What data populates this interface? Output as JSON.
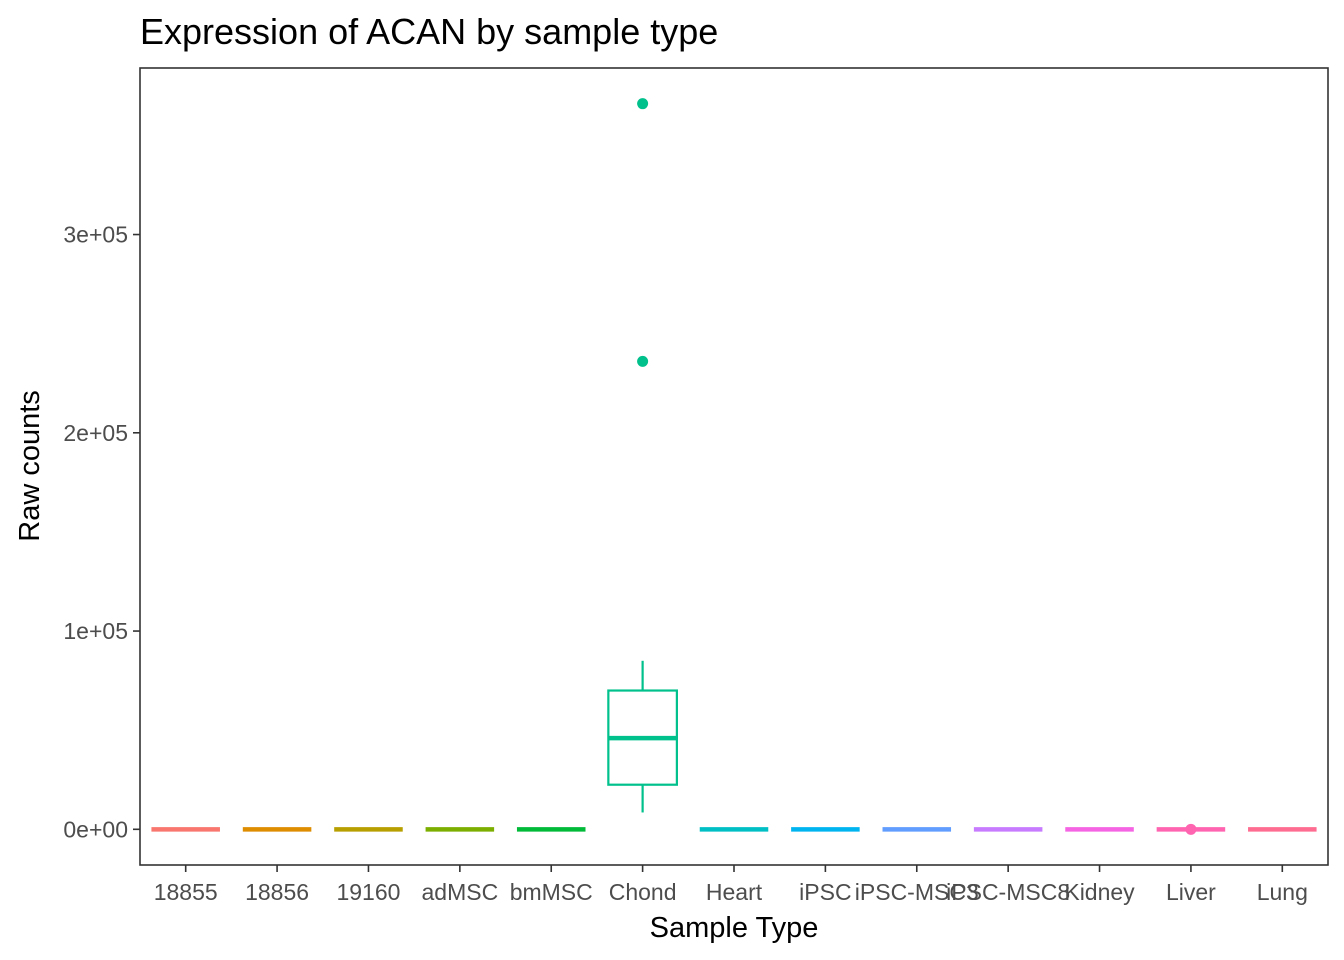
{
  "chart_data": {
    "type": "box",
    "title": "Expression of ACAN by sample type",
    "xlabel": "Sample Type",
    "ylabel": "Raw counts",
    "ylim": [
      -18000,
      384000
    ],
    "y_ticks": [
      0,
      100000,
      200000,
      300000
    ],
    "y_tick_labels": [
      "0e+00",
      "1e+05",
      "2e+05",
      "3e+05"
    ],
    "grid": false,
    "legend": "none",
    "categories": [
      "18855",
      "18856",
      "19160",
      "adMSC",
      "bmMSC",
      "Chond",
      "Heart",
      "iPSC",
      "iPSC-MSC3",
      "iPSC-MSC8",
      "Kidney",
      "Liver",
      "Lung"
    ],
    "boxes": [
      {
        "category": "18855",
        "color": "#F8766D",
        "whisker_low": 0,
        "q1": 0,
        "median": 0,
        "q3": 0,
        "whisker_high": 0,
        "outliers": []
      },
      {
        "category": "18856",
        "color": "#DE8C00",
        "whisker_low": 0,
        "q1": 0,
        "median": 0,
        "q3": 0,
        "whisker_high": 0,
        "outliers": []
      },
      {
        "category": "19160",
        "color": "#B79F00",
        "whisker_low": 0,
        "q1": 0,
        "median": 0,
        "q3": 0,
        "whisker_high": 0,
        "outliers": []
      },
      {
        "category": "adMSC",
        "color": "#7CAE00",
        "whisker_low": 0,
        "q1": 0,
        "median": 0,
        "q3": 0,
        "whisker_high": 0,
        "outliers": []
      },
      {
        "category": "bmMSC",
        "color": "#00BA38",
        "whisker_low": 0,
        "q1": 0,
        "median": 0,
        "q3": 0,
        "whisker_high": 0,
        "outliers": []
      },
      {
        "category": "Chond",
        "color": "#00C08B",
        "whisker_low": 8500,
        "q1": 22500,
        "median": 46000,
        "q3": 70000,
        "whisker_high": 85000,
        "outliers": [
          236000,
          366000
        ]
      },
      {
        "category": "Heart",
        "color": "#00BFC4",
        "whisker_low": 0,
        "q1": 0,
        "median": 0,
        "q3": 0,
        "whisker_high": 0,
        "outliers": []
      },
      {
        "category": "iPSC",
        "color": "#00B4F0",
        "whisker_low": 0,
        "q1": 0,
        "median": 0,
        "q3": 0,
        "whisker_high": 0,
        "outliers": []
      },
      {
        "category": "iPSC-MSC3",
        "color": "#619CFF",
        "whisker_low": 0,
        "q1": 0,
        "median": 0,
        "q3": 0,
        "whisker_high": 0,
        "outliers": []
      },
      {
        "category": "iPSC-MSC8",
        "color": "#C77CFF",
        "whisker_low": 0,
        "q1": 0,
        "median": 0,
        "q3": 0,
        "whisker_high": 0,
        "outliers": []
      },
      {
        "category": "Kidney",
        "color": "#F564E3",
        "whisker_low": 0,
        "q1": 0,
        "median": 0,
        "q3": 0,
        "whisker_high": 0,
        "outliers": []
      },
      {
        "category": "Liver",
        "color": "#FF64B0",
        "whisker_low": 0,
        "q1": 0,
        "median": 0,
        "q3": 0,
        "whisker_high": 0,
        "outliers": [
          0
        ]
      },
      {
        "category": "Lung",
        "color": "#FF6C91",
        "whisker_low": 0,
        "q1": 0,
        "median": 0,
        "q3": 0,
        "whisker_high": 0,
        "outliers": []
      }
    ]
  }
}
